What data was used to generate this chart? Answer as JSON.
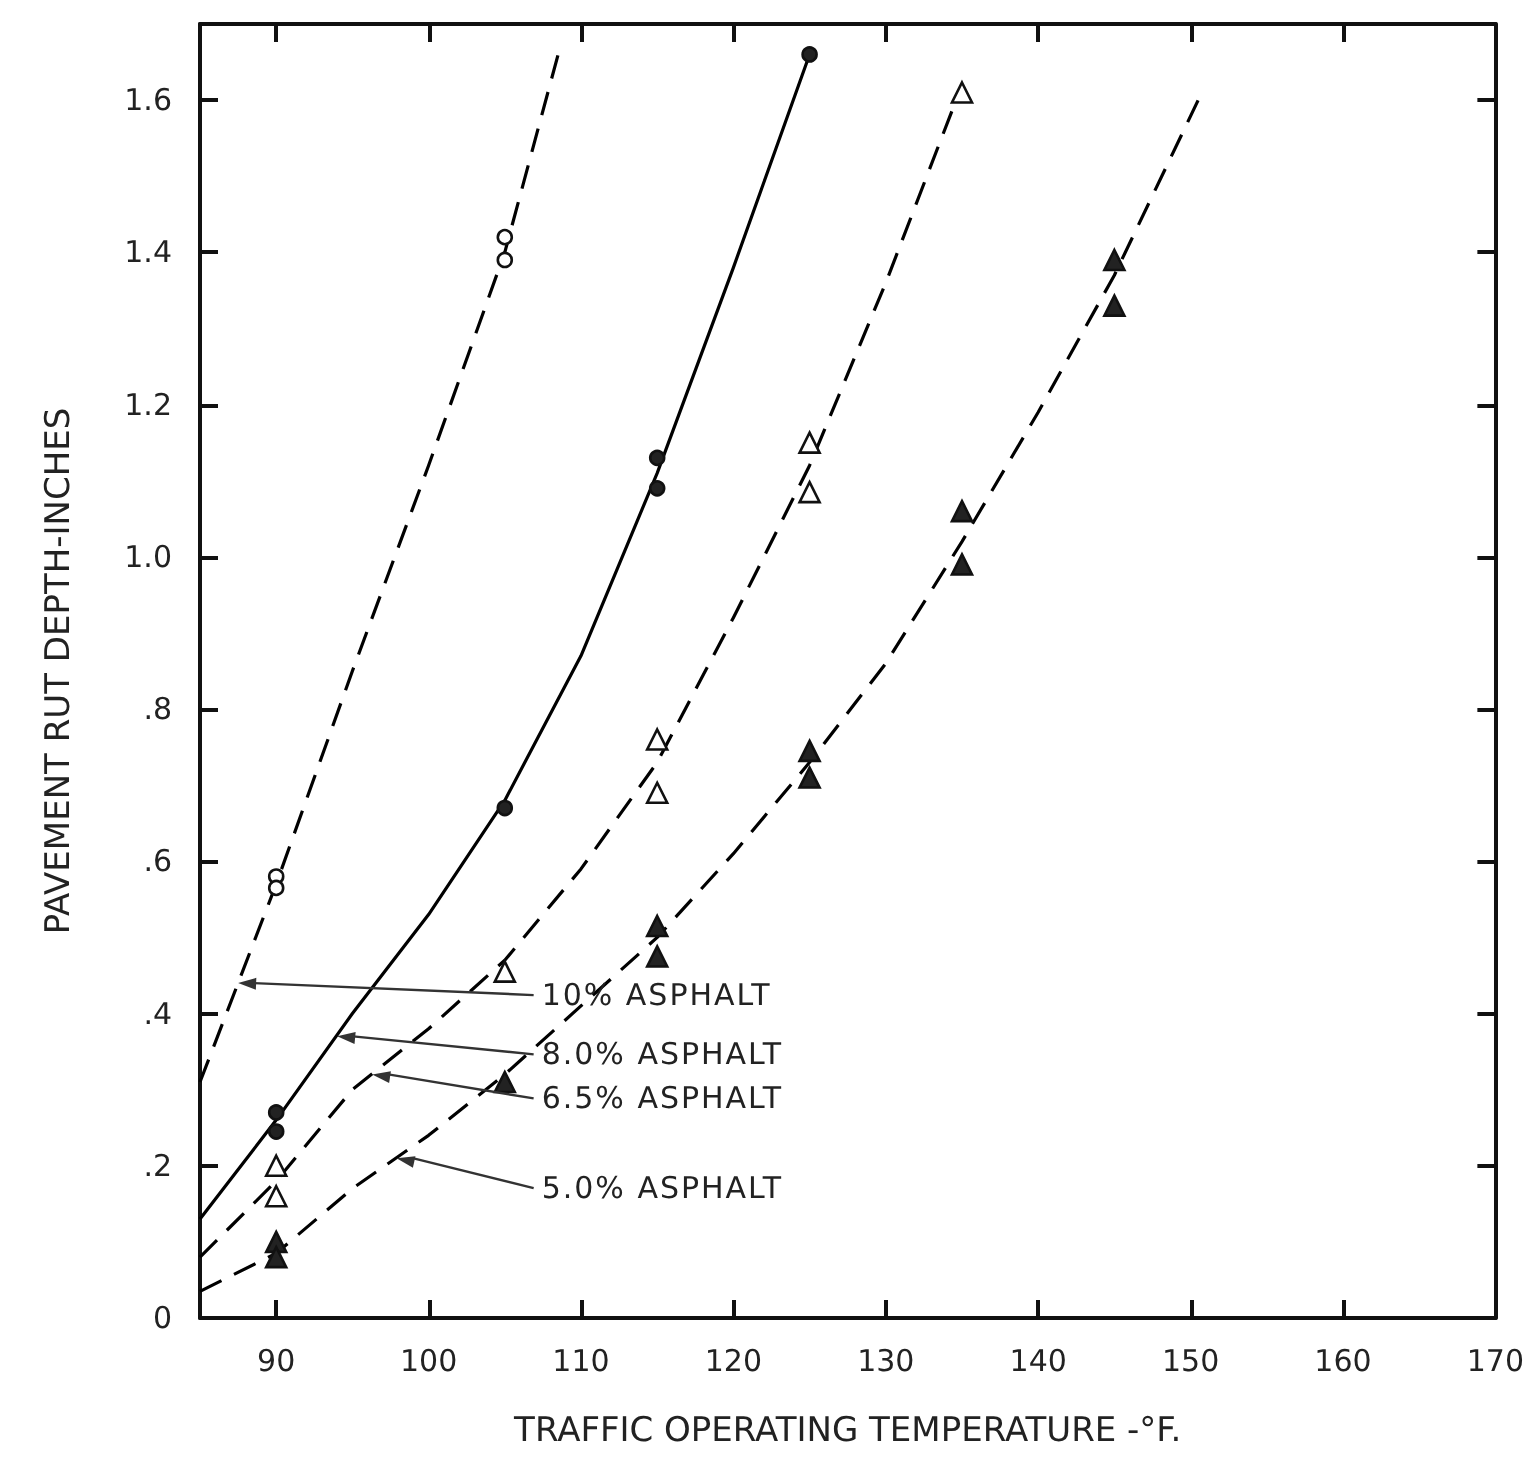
{
  "chart_data": {
    "type": "scatter",
    "xlabel": "TRAFFIC OPERATING TEMPERATURE -°F.",
    "ylabel": "PAVEMENT RUT DEPTH-INCHES",
    "xlim": [
      85,
      170
    ],
    "ylim": [
      0,
      1.7
    ],
    "xticks": [
      90,
      100,
      110,
      120,
      130,
      140,
      150,
      160,
      170
    ],
    "yticks": [
      {
        "value": 0,
        "label": "0"
      },
      {
        "value": 0.2,
        "label": ".2"
      },
      {
        "value": 0.4,
        "label": ".4"
      },
      {
        "value": 0.6,
        "label": ".6"
      },
      {
        "value": 0.8,
        "label": ".8"
      },
      {
        "value": 1.0,
        "label": "1.0"
      },
      {
        "value": 1.2,
        "label": "1.2"
      },
      {
        "value": 1.4,
        "label": "1.4"
      },
      {
        "value": 1.6,
        "label": "1.6"
      }
    ],
    "grid": false,
    "series": [
      {
        "type": "line",
        "color": "#000000",
        "marker": "none",
        "line_style": "dashed",
        "x": [
          85,
          90,
          95,
          100,
          105,
          108.5
        ],
        "values": [
          0.31,
          0.57,
          0.85,
          1.12,
          1.4,
          1.66
        ]
      },
      {
        "type": "line",
        "color": "#000000",
        "marker": "none",
        "line_style": "solid",
        "x": [
          85,
          90,
          95,
          100,
          105,
          110,
          115,
          120,
          125
        ],
        "values": [
          0.13,
          0.26,
          0.4,
          0.53,
          0.68,
          0.87,
          1.11,
          1.38,
          1.66
        ]
      },
      {
        "type": "line",
        "color": "#000000",
        "marker": "none",
        "line_style": "dashed",
        "x": [
          85,
          90,
          95,
          100,
          105,
          110,
          115,
          120,
          125,
          130,
          135
        ],
        "values": [
          0.08,
          0.18,
          0.3,
          0.38,
          0.47,
          0.59,
          0.73,
          0.92,
          1.12,
          1.36,
          1.62
        ]
      },
      {
        "type": "line",
        "color": "#000000",
        "marker": "none",
        "line_style": "dashed",
        "x": [
          85,
          90,
          95,
          100,
          105,
          110,
          115,
          120,
          125,
          130,
          135,
          140,
          145,
          150.5
        ],
        "values": [
          0.035,
          0.085,
          0.17,
          0.24,
          0.32,
          0.41,
          0.5,
          0.61,
          0.73,
          0.86,
          1.02,
          1.19,
          1.37,
          1.6
        ]
      },
      {
        "color": "#ffffff",
        "marker": "circle",
        "x": [
          90,
          90,
          105,
          105
        ],
        "values": [
          0.58,
          0.565,
          1.42,
          1.39
        ]
      },
      {
        "color": "#222222",
        "marker": "circle",
        "x": [
          90,
          90,
          105,
          115,
          115,
          125
        ],
        "values": [
          0.27,
          0.245,
          0.67,
          1.13,
          1.09,
          1.66
        ]
      },
      {
        "color": "#ffffff",
        "marker": "triangle",
        "x": [
          90,
          90,
          105,
          115,
          115,
          125,
          125,
          135
        ],
        "values": [
          0.2,
          0.16,
          0.455,
          0.76,
          0.69,
          1.15,
          1.085,
          1.61
        ]
      },
      {
        "color": "#222222",
        "marker": "triangle",
        "x": [
          90,
          90,
          105,
          115,
          115,
          125,
          125,
          135,
          135,
          145,
          145
        ],
        "values": [
          0.1,
          0.08,
          0.31,
          0.515,
          0.475,
          0.745,
          0.71,
          1.06,
          0.99,
          1.39,
          1.33
        ]
      }
    ],
    "annotations": [
      {
        "text": "10% ASPHALT",
        "x": 87.5,
        "y": 0.44
      },
      {
        "text": "8.0% ASPHALT",
        "x": 94,
        "y": 0.37
      },
      {
        "text": "6.5% ASPHALT",
        "x": 96.3,
        "y": 0.32
      },
      {
        "text": "5.0% ASPHALT",
        "x": 97.9,
        "y": 0.21
      }
    ]
  }
}
